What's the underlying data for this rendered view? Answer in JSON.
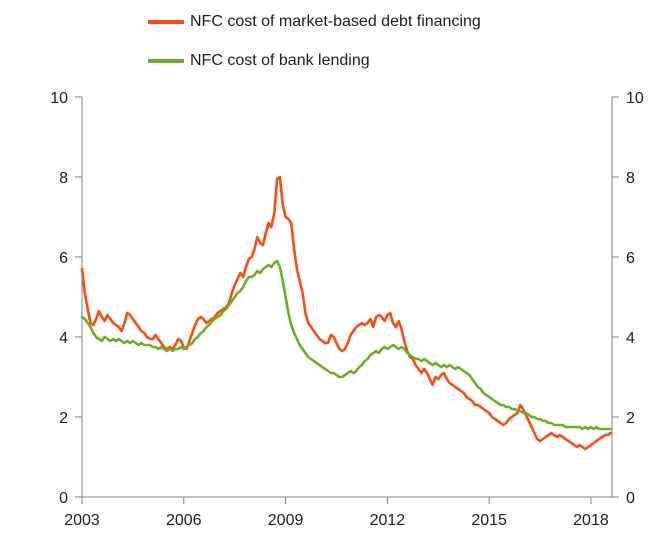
{
  "legend": {
    "items": [
      {
        "label": "NFC cost of market-based debt financing",
        "color": "#fb4b0f"
      },
      {
        "label": "NFC cost of bank lending",
        "color": "#69b022"
      }
    ]
  },
  "chart_data": {
    "type": "line",
    "title": "",
    "xlabel": "",
    "ylabel": "",
    "grid": false,
    "legend_position": "top-left",
    "xlim": [
      2003,
      2018.62
    ],
    "ylim": [
      0,
      10
    ],
    "x_start": 2003.0,
    "x_step_years": 0.0833333,
    "x_ticks": [
      "2003",
      "2006",
      "2009",
      "2012",
      "2015",
      "2018"
    ],
    "x_tick_values": [
      2003,
      2006,
      2009,
      2012,
      2015,
      2018
    ],
    "y_ticks": [
      "0",
      "2",
      "4",
      "6",
      "8",
      "10"
    ],
    "y_tick_values": [
      0,
      2,
      4,
      6,
      8,
      10
    ],
    "series": [
      {
        "name": "NFC cost of market-based debt financing",
        "color": "#fb4b0f",
        "values": [
          5.7,
          5.1,
          4.7,
          4.35,
          4.3,
          4.45,
          4.65,
          4.5,
          4.4,
          4.55,
          4.45,
          4.35,
          4.3,
          4.25,
          4.15,
          4.35,
          4.6,
          4.55,
          4.45,
          4.35,
          4.25,
          4.15,
          4.1,
          4.0,
          3.95,
          3.95,
          4.05,
          3.95,
          3.85,
          3.75,
          3.7,
          3.75,
          3.7,
          3.8,
          3.95,
          3.9,
          3.75,
          3.7,
          3.9,
          4.1,
          4.3,
          4.45,
          4.5,
          4.45,
          4.35,
          4.4,
          4.45,
          4.5,
          4.6,
          4.65,
          4.7,
          4.75,
          4.85,
          5.1,
          5.3,
          5.45,
          5.6,
          5.5,
          5.75,
          5.95,
          6.0,
          6.2,
          6.5,
          6.35,
          6.3,
          6.6,
          6.85,
          6.75,
          7.1,
          7.95,
          8.0,
          7.3,
          7.0,
          6.95,
          6.85,
          6.2,
          5.7,
          5.4,
          5.1,
          4.6,
          4.35,
          4.25,
          4.15,
          4.05,
          3.95,
          3.9,
          3.85,
          3.85,
          4.05,
          4.0,
          3.85,
          3.7,
          3.65,
          3.7,
          3.85,
          4.05,
          4.15,
          4.25,
          4.3,
          4.35,
          4.3,
          4.35,
          4.45,
          4.25,
          4.5,
          4.55,
          4.5,
          4.4,
          4.55,
          4.6,
          4.35,
          4.25,
          4.4,
          4.2,
          3.9,
          3.65,
          3.5,
          3.45,
          3.3,
          3.2,
          3.1,
          3.2,
          3.1,
          2.95,
          2.8,
          3.0,
          2.95,
          3.05,
          3.1,
          2.95,
          2.85,
          2.8,
          2.75,
          2.7,
          2.65,
          2.6,
          2.5,
          2.45,
          2.4,
          2.3,
          2.3,
          2.25,
          2.2,
          2.15,
          2.1,
          2.0,
          1.95,
          1.9,
          1.85,
          1.8,
          1.85,
          1.95,
          2.0,
          2.05,
          2.1,
          2.3,
          2.2,
          2.05,
          1.9,
          1.75,
          1.6,
          1.45,
          1.4,
          1.45,
          1.5,
          1.55,
          1.6,
          1.55,
          1.5,
          1.55,
          1.5,
          1.45,
          1.4,
          1.35,
          1.3,
          1.25,
          1.3,
          1.25,
          1.2,
          1.25,
          1.3,
          1.35,
          1.4,
          1.45,
          1.5,
          1.55,
          1.55,
          1.6
        ]
      },
      {
        "name": "NFC cost of bank lending",
        "color": "#69b022",
        "values": [
          4.5,
          4.45,
          4.35,
          4.25,
          4.1,
          4.0,
          3.95,
          3.9,
          4.0,
          3.95,
          3.9,
          3.95,
          3.9,
          3.95,
          3.9,
          3.85,
          3.9,
          3.85,
          3.9,
          3.85,
          3.8,
          3.85,
          3.8,
          3.8,
          3.8,
          3.75,
          3.75,
          3.7,
          3.75,
          3.7,
          3.65,
          3.7,
          3.65,
          3.7,
          3.7,
          3.75,
          3.7,
          3.75,
          3.8,
          3.85,
          3.95,
          4.0,
          4.1,
          4.15,
          4.25,
          4.3,
          4.4,
          4.45,
          4.5,
          4.55,
          4.65,
          4.7,
          4.8,
          4.9,
          5.0,
          5.1,
          5.15,
          5.25,
          5.4,
          5.5,
          5.5,
          5.55,
          5.65,
          5.6,
          5.7,
          5.75,
          5.8,
          5.75,
          5.85,
          5.9,
          5.75,
          5.4,
          5.0,
          4.6,
          4.3,
          4.1,
          3.95,
          3.8,
          3.7,
          3.6,
          3.5,
          3.45,
          3.4,
          3.35,
          3.3,
          3.25,
          3.2,
          3.15,
          3.1,
          3.1,
          3.05,
          3.0,
          3.0,
          3.05,
          3.1,
          3.15,
          3.1,
          3.15,
          3.25,
          3.3,
          3.4,
          3.45,
          3.55,
          3.6,
          3.65,
          3.6,
          3.7,
          3.75,
          3.7,
          3.75,
          3.8,
          3.75,
          3.7,
          3.75,
          3.7,
          3.6,
          3.55,
          3.5,
          3.45,
          3.45,
          3.4,
          3.45,
          3.4,
          3.35,
          3.3,
          3.35,
          3.3,
          3.25,
          3.3,
          3.25,
          3.3,
          3.25,
          3.2,
          3.25,
          3.2,
          3.15,
          3.1,
          3.05,
          2.95,
          2.85,
          2.75,
          2.7,
          2.6,
          2.55,
          2.5,
          2.45,
          2.4,
          2.35,
          2.3,
          2.3,
          2.25,
          2.25,
          2.2,
          2.2,
          2.15,
          2.15,
          2.1,
          2.1,
          2.05,
          2.0,
          2.0,
          1.95,
          1.95,
          1.9,
          1.9,
          1.85,
          1.85,
          1.8,
          1.8,
          1.8,
          1.8,
          1.75,
          1.75,
          1.75,
          1.75,
          1.75,
          1.75,
          1.7,
          1.75,
          1.7,
          1.75,
          1.7,
          1.75,
          1.7,
          1.7,
          1.7,
          1.7,
          1.7
        ]
      }
    ]
  }
}
